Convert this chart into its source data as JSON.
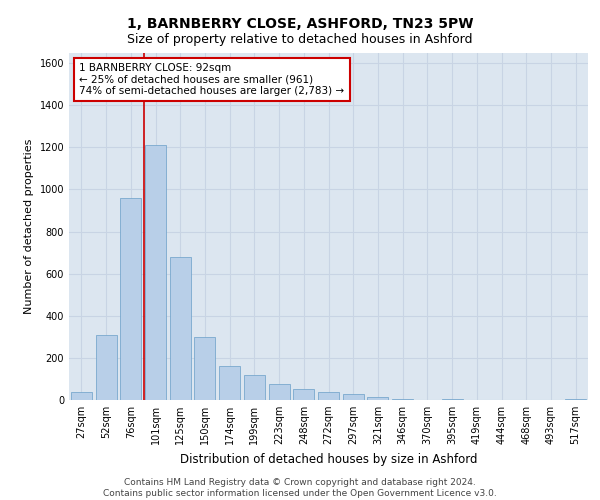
{
  "title": "1, BARNBERRY CLOSE, ASHFORD, TN23 5PW",
  "subtitle": "Size of property relative to detached houses in Ashford",
  "xlabel": "Distribution of detached houses by size in Ashford",
  "ylabel": "Number of detached properties",
  "categories": [
    "27sqm",
    "52sqm",
    "76sqm",
    "101sqm",
    "125sqm",
    "150sqm",
    "174sqm",
    "199sqm",
    "223sqm",
    "248sqm",
    "272sqm",
    "297sqm",
    "321sqm",
    "346sqm",
    "370sqm",
    "395sqm",
    "419sqm",
    "444sqm",
    "468sqm",
    "493sqm",
    "517sqm"
  ],
  "values": [
    40,
    310,
    960,
    1210,
    680,
    300,
    160,
    120,
    75,
    50,
    40,
    30,
    15,
    5,
    0,
    5,
    0,
    0,
    0,
    0,
    5
  ],
  "bar_color": "#b8cfe8",
  "bar_edge_color": "#6a9fc8",
  "grid_color": "#c8d4e4",
  "background_color": "#dce6f0",
  "annotation_box_text": "1 BARNBERRY CLOSE: 92sqm\n← 25% of detached houses are smaller (961)\n74% of semi-detached houses are larger (2,783) →",
  "annotation_box_color": "#ffffff",
  "annotation_box_edge_color": "#cc0000",
  "vline_x": 2.55,
  "vline_color": "#cc0000",
  "ylim": [
    0,
    1650
  ],
  "yticks": [
    0,
    200,
    400,
    600,
    800,
    1000,
    1200,
    1400,
    1600
  ],
  "footer_line1": "Contains HM Land Registry data © Crown copyright and database right 2024.",
  "footer_line2": "Contains public sector information licensed under the Open Government Licence v3.0.",
  "title_fontsize": 10,
  "subtitle_fontsize": 9,
  "tick_fontsize": 7,
  "ylabel_fontsize": 8,
  "xlabel_fontsize": 8.5,
  "footer_fontsize": 6.5,
  "annotation_fontsize": 7.5
}
